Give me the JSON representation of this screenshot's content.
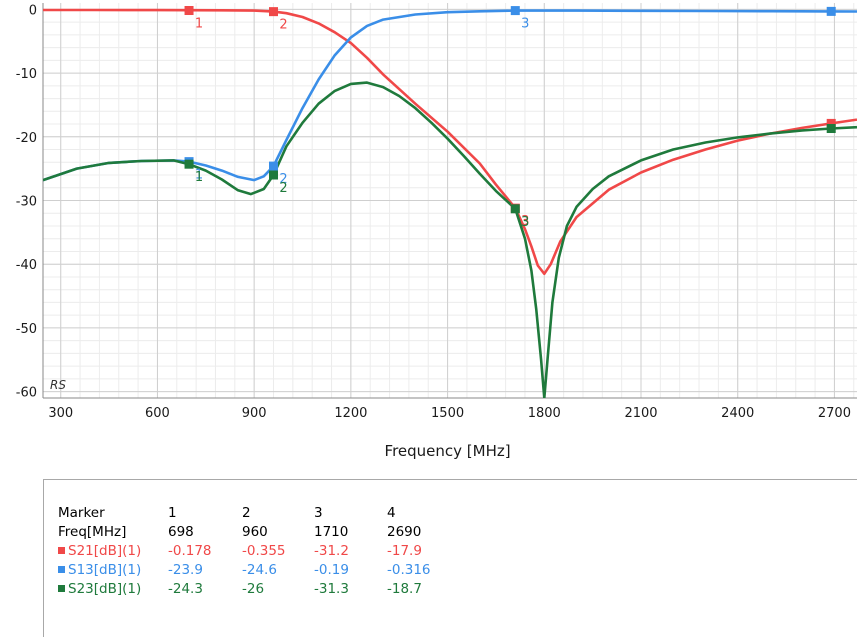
{
  "chart_data": {
    "type": "line",
    "xlabel": "Frequency [MHz]",
    "ylabel": "",
    "xlim": [
      245,
      2770
    ],
    "ylim": [
      -61,
      1
    ],
    "xticks": [
      300,
      600,
      900,
      1200,
      1500,
      1800,
      2100,
      2400,
      2700
    ],
    "xtick_labels": [
      "300",
      "600",
      "900",
      "1200",
      "1500",
      "1800",
      "2100",
      "2400",
      "2700"
    ],
    "yticks": [
      0,
      -10,
      -20,
      -30,
      -40,
      -50,
      -60
    ],
    "ytick_labels": [
      "0",
      "-10",
      "-20",
      "-30",
      "-40",
      "-50",
      "-60"
    ],
    "grid": true,
    "corner_label": "RS",
    "series": [
      {
        "name": "S21[dB](1)",
        "color": "#f04848",
        "x": [
          245,
          400,
          600,
          800,
          900,
          960,
          1000,
          1050,
          1100,
          1150,
          1200,
          1250,
          1300,
          1400,
          1500,
          1600,
          1650,
          1710,
          1740,
          1760,
          1780,
          1800,
          1820,
          1850,
          1900,
          2000,
          2100,
          2200,
          2300,
          2400,
          2500,
          2600,
          2690,
          2770
        ],
        "y": [
          -0.1,
          -0.1,
          -0.12,
          -0.15,
          -0.2,
          -0.355,
          -0.6,
          -1.2,
          -2.2,
          -3.6,
          -5.3,
          -7.6,
          -10.2,
          -14.8,
          -19.2,
          -24.2,
          -27.5,
          -31.2,
          -34.5,
          -37.2,
          -40.2,
          -41.5,
          -40.0,
          -36.4,
          -32.6,
          -28.3,
          -25.6,
          -23.6,
          -22.0,
          -20.6,
          -19.5,
          -18.6,
          -17.9,
          -17.3
        ]
      },
      {
        "name": "S13[dB](1)",
        "color": "#3a8ee8",
        "x": [
          245,
          350,
          450,
          550,
          650,
          698,
          750,
          800,
          850,
          900,
          930,
          960,
          1000,
          1050,
          1100,
          1150,
          1200,
          1250,
          1300,
          1400,
          1500,
          1600,
          1710,
          1900,
          2100,
          2300,
          2500,
          2690,
          2770
        ],
        "y": [
          -26.8,
          -25.0,
          -24.1,
          -23.8,
          -23.7,
          -23.9,
          -24.5,
          -25.3,
          -26.3,
          -26.8,
          -26.2,
          -24.6,
          -20.5,
          -15.5,
          -11.0,
          -7.2,
          -4.4,
          -2.6,
          -1.6,
          -0.8,
          -0.45,
          -0.3,
          -0.19,
          -0.2,
          -0.22,
          -0.25,
          -0.28,
          -0.316,
          -0.33
        ]
      },
      {
        "name": "S23[dB](1)",
        "color": "#1f7a3c",
        "x": [
          245,
          350,
          450,
          550,
          650,
          698,
          750,
          800,
          850,
          890,
          930,
          960,
          1000,
          1050,
          1100,
          1150,
          1200,
          1250,
          1300,
          1350,
          1400,
          1450,
          1500,
          1550,
          1600,
          1650,
          1710,
          1740,
          1760,
          1775,
          1790,
          1800,
          1810,
          1825,
          1845,
          1870,
          1900,
          1950,
          2000,
          2100,
          2200,
          2300,
          2400,
          2500,
          2600,
          2690,
          2770
        ],
        "y": [
          -26.8,
          -25.0,
          -24.1,
          -23.8,
          -23.7,
          -24.3,
          -25.3,
          -26.7,
          -28.4,
          -29.0,
          -28.2,
          -26.0,
          -21.5,
          -17.8,
          -14.8,
          -12.8,
          -11.7,
          -11.5,
          -12.2,
          -13.6,
          -15.5,
          -17.8,
          -20.3,
          -23.0,
          -25.8,
          -28.5,
          -31.3,
          -36.0,
          -41.0,
          -47.0,
          -55.0,
          -61.0,
          -55.0,
          -46.0,
          -39.0,
          -34.0,
          -31.0,
          -28.2,
          -26.2,
          -23.7,
          -22.0,
          -20.9,
          -20.1,
          -19.5,
          -19.0,
          -18.7,
          -18.5
        ]
      }
    ],
    "markers": {
      "header": "Marker",
      "freq_label": "Freq[MHz]",
      "ids": [
        "1",
        "2",
        "3",
        "4"
      ],
      "freqs": [
        "698",
        "960",
        "1710",
        "2690"
      ],
      "freq_values": [
        698,
        960,
        1710,
        2690
      ],
      "rows": [
        {
          "label": "S21[dB](1)",
          "values": [
            "-0.178",
            "-0.355",
            "-31.2",
            "-17.9"
          ],
          "numeric": [
            -0.178,
            -0.355,
            -31.2,
            -17.9
          ],
          "color": "#f04848"
        },
        {
          "label": "S13[dB](1)",
          "values": [
            "-23.9",
            "-24.6",
            "-0.19",
            "-0.316"
          ],
          "numeric": [
            -23.9,
            -24.6,
            -0.19,
            -0.316
          ],
          "color": "#3a8ee8"
        },
        {
          "label": "S23[dB](1)",
          "values": [
            "-24.3",
            "-26",
            "-31.3",
            "-18.7"
          ],
          "numeric": [
            -24.3,
            -26,
            -31.3,
            -18.7
          ],
          "color": "#1f7a3c"
        }
      ]
    }
  }
}
